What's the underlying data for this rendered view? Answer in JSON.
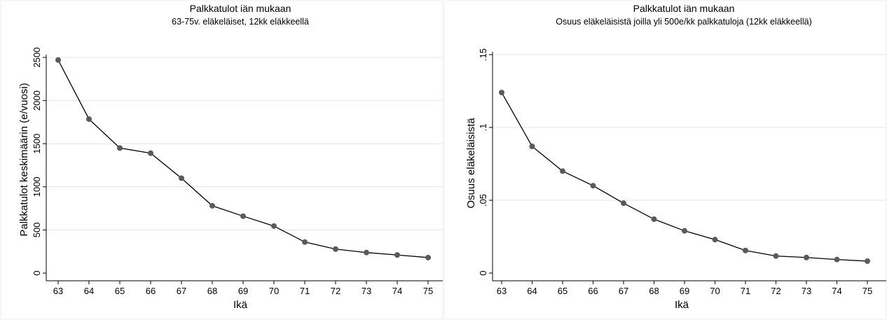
{
  "chart_data": [
    {
      "type": "line",
      "title": "Palkkatulot iän mukaan",
      "subtitle": "63-75v. eläkeläiset, 12kk eläkkeellä",
      "xlabel": "Ikä",
      "ylabel": "Palkkatulot keskimäärin (e/vuosi)",
      "x": [
        63,
        64,
        65,
        66,
        67,
        68,
        69,
        70,
        71,
        72,
        73,
        74,
        75
      ],
      "values": [
        2470,
        1785,
        1450,
        1390,
        1100,
        780,
        660,
        545,
        360,
        278,
        238,
        210,
        180
      ],
      "xlim": [
        63,
        75
      ],
      "ylim": [
        0,
        2500
      ],
      "yticks": [
        0,
        500,
        1000,
        1500,
        2000,
        2500
      ],
      "yticklabels": [
        "0",
        "500",
        "1000",
        "1500",
        "2000",
        "2500"
      ],
      "grid": true,
      "legend": "none"
    },
    {
      "type": "line",
      "title": "Palkkatulot iän mukaan",
      "subtitle": "Osuus eläkeläisistä joilla yli 500e/kk palkkatuloja (12kk eläkkeellä)",
      "xlabel": "Ikä",
      "ylabel": "Osuus eläkeläisistä",
      "x": [
        63,
        64,
        65,
        66,
        67,
        68,
        69,
        70,
        71,
        72,
        73,
        74,
        75
      ],
      "values": [
        0.124,
        0.087,
        0.07,
        0.06,
        0.048,
        0.037,
        0.029,
        0.023,
        0.0155,
        0.0117,
        0.0107,
        0.0093,
        0.0082
      ],
      "xlim": [
        63,
        75
      ],
      "ylim": [
        0,
        0.15
      ],
      "yticks": [
        0,
        0.05,
        0.1,
        0.15
      ],
      "yticklabels": [
        "0",
        ".05",
        ".1",
        ".15"
      ],
      "grid": true,
      "legend": "none"
    }
  ],
  "colors": {
    "line": "#000000",
    "marker": "#5a5a5a",
    "grid": "#e3e3e3",
    "panel_border": "#eeeeee"
  }
}
